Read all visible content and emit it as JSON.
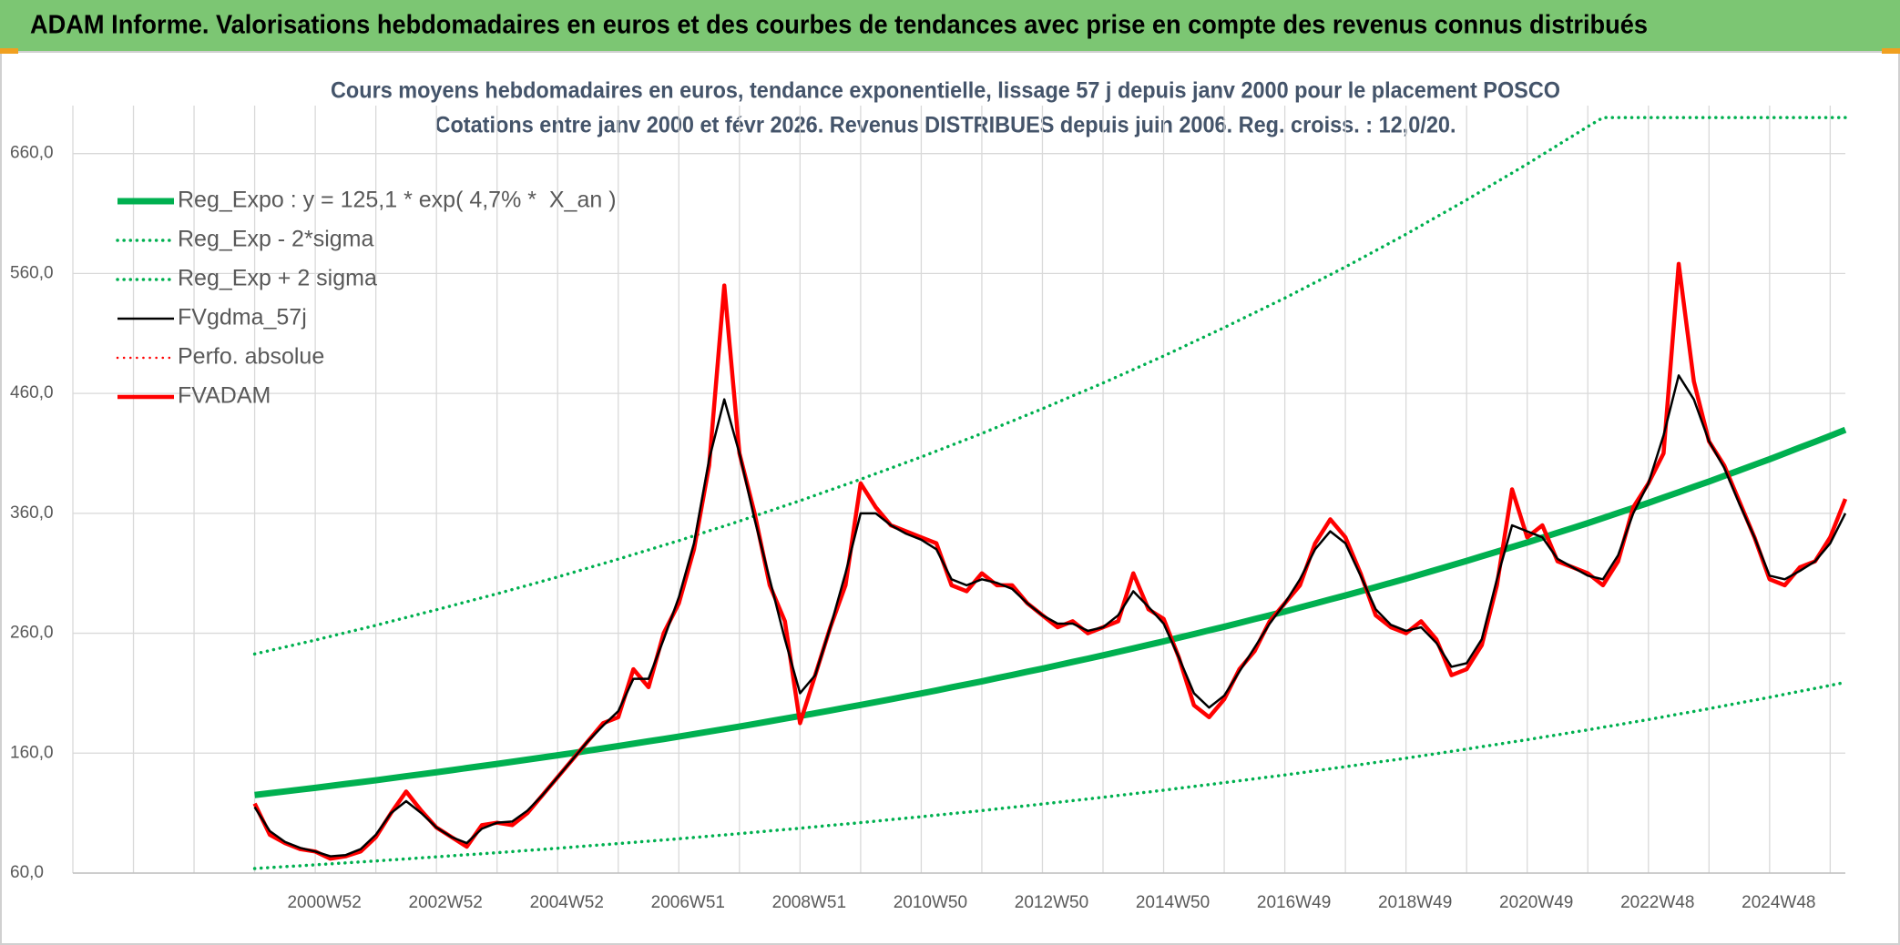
{
  "header": "ADAM Informe. Valorisations hebdomadaires en euros et des courbes de tendances avec prise en compte des revenus connus distribués",
  "chart_data": {
    "type": "line",
    "title": "Cours moyens hebdomadaires en euros, tendance exponentielle, lissage 57 j depuis janv 2000 pour le placement POSCO",
    "subtitle": "Cotations entre janv 2000 et févr 2026. Revenus DISTRIBUES depuis juin 2006. Reg. croiss. : 12,0/20.",
    "categories": [
      null,
      null,
      null,
      null,
      "2000W52",
      null,
      null,
      null,
      null,
      null,
      null,
      null,
      "2002W52",
      null,
      null,
      null,
      null,
      null,
      null,
      null,
      "2004W52",
      null,
      null,
      null,
      null,
      null,
      null,
      null,
      "2006W51",
      null,
      null,
      null,
      null,
      null,
      null,
      null,
      "2008W51",
      null,
      null,
      null,
      null,
      null,
      null,
      null,
      "2010W50",
      null,
      null,
      null,
      null,
      null,
      null,
      null,
      "2012W50",
      null,
      null,
      null,
      null,
      null,
      null,
      null,
      "2014W50",
      null,
      null,
      null,
      null,
      null,
      null,
      null,
      "2016W49",
      null,
      null,
      null,
      null,
      null,
      null,
      null,
      "2018W49",
      null,
      null,
      null,
      null,
      null,
      null,
      null,
      "2020W49",
      null,
      null,
      null,
      null,
      null,
      null,
      null,
      "2022W48",
      null,
      null,
      null,
      null,
      null,
      null,
      null,
      "2024W48",
      null,
      null,
      null,
      null,
      null
    ],
    "ylim": [
      60,
      700
    ],
    "yticks": [
      {
        "value": 60,
        "label": "60,0"
      },
      {
        "value": 160,
        "label": "160,0"
      },
      {
        "value": 260,
        "label": "260,0"
      },
      {
        "value": 360,
        "label": "360,0"
      },
      {
        "value": 460,
        "label": "460,0"
      },
      {
        "value": 560,
        "label": "560,0"
      },
      {
        "value": 660,
        "label": "660,0"
      }
    ],
    "grid": true,
    "legend": "upper left",
    "series": [
      {
        "name": "Reg_Expo : y = 125,1 * exp( 4,7% *  X_an )",
        "color": "#00b050",
        "line_style": "solid",
        "values": [
          125.1,
          126.6,
          128.1,
          129.6,
          131.1,
          132.7,
          134.3,
          135.8,
          137.4,
          139.1,
          140.8,
          142.4,
          144.1,
          145.8,
          147.6,
          149.3,
          151.0,
          152.8,
          154.6,
          156.4,
          158.2,
          160.1,
          162.1,
          164.0,
          165.9,
          167.9,
          169.9,
          171.8,
          173.8,
          175.9,
          178.0,
          180.1,
          182.2,
          184.4,
          186.6,
          188.8,
          191.0,
          193.3,
          195.6,
          197.9,
          200.2,
          202.6,
          205.0,
          207.4,
          209.8,
          212.3,
          214.9,
          217.4,
          219.9,
          222.6,
          225.2,
          227.9,
          230.5,
          233.3,
          236.1,
          238.8,
          241.6,
          244.5,
          247.4,
          250.3,
          253.2,
          256.3,
          259.3,
          262.4,
          265.4,
          268.6,
          271.8,
          274.9,
          278.1,
          281.5,
          284.8,
          288.2,
          291.5,
          295.0,
          298.5,
          302.0,
          305.5,
          309.2,
          312.9,
          316.6,
          320.3,
          324.2,
          328.0,
          331.9,
          335.7,
          339.7,
          343.8,
          347.8,
          351.8,
          356.0,
          360.3,
          364.5,
          368.7,
          373.2,
          377.6,
          382.1,
          386.5,
          391.2,
          395.8,
          400.5,
          405.1,
          410.0,
          414.9,
          419.7,
          424.6,
          429.6
        ]
      },
      {
        "name": "Reg_Exp - 2*sigma",
        "color": "#00b050",
        "line_style": "dotted",
        "values": [
          63.8,
          64.6,
          65.4,
          66.1,
          66.9,
          67.7,
          68.5,
          69.3,
          70.1,
          71.0,
          71.8,
          72.7,
          73.5,
          74.4,
          75.3,
          76.1,
          77.0,
          77.9,
          78.9,
          79.8,
          80.7,
          81.7,
          82.7,
          83.6,
          84.6,
          85.6,
          86.6,
          87.6,
          88.6,
          89.7,
          90.8,
          91.8,
          92.9,
          94.0,
          95.2,
          96.3,
          97.4,
          98.6,
          99.8,
          100.9,
          102.1,
          103.3,
          104.6,
          105.8,
          107.0,
          108.3,
          109.6,
          110.8,
          112.1,
          113.5,
          114.9,
          116.2,
          117.6,
          119.0,
          120.4,
          121.8,
          123.2,
          124.7,
          126.2,
          127.6,
          129.1,
          130.7,
          132.3,
          133.8,
          135.4,
          137.0,
          138.6,
          140.2,
          141.8,
          143.5,
          145.3,
          147.0,
          148.7,
          150.5,
          152.3,
          154.0,
          155.8,
          157.7,
          159.6,
          161.5,
          163.4,
          165.4,
          167.3,
          169.3,
          171.2,
          173.3,
          175.3,
          177.4,
          179.4,
          181.6,
          183.7,
          185.9,
          188.0,
          190.3,
          192.6,
          194.8,
          197.1,
          199.5,
          201.9,
          204.2,
          206.6,
          209.1,
          211.6,
          214.0,
          216.5,
          219.1
        ]
      },
      {
        "name": "Reg_Exp + 2 sigma",
        "color": "#00b050",
        "line_style": "dotted",
        "values": [
          242.7,
          245.6,
          248.5,
          251.4,
          254.3,
          257.4,
          260.5,
          263.5,
          266.6,
          269.9,
          273.1,
          276.4,
          279.6,
          282.9,
          286.3,
          289.6,
          292.9,
          296.4,
          299.9,
          303.4,
          306.9,
          310.6,
          314.4,
          318.1,
          321.8,
          325.7,
          329.5,
          333.4,
          337.2,
          341.3,
          345.4,
          349.4,
          353.5,
          357.8,
          362.0,
          366.3,
          370.5,
          375.0,
          379.5,
          383.9,
          388.4,
          393.1,
          397.7,
          402.4,
          407.0,
          411.9,
          416.8,
          421.7,
          426.6,
          431.8,
          436.9,
          442.1,
          447.2,
          452.6,
          458.0,
          463.3,
          468.7,
          474.3,
          479.9,
          485.6,
          491.2,
          497.1,
          503.1,
          509.0,
          514.9,
          521.1,
          527.2,
          533.4,
          539.5,
          546.0,
          552.5,
          559.0,
          565.5,
          572.3,
          579.1,
          585.9,
          592.7,
          599.9,
          607.1,
          614.2,
          621.4,
          628.9,
          636.4,
          643.8,
          651.3,
          659.1,
          666.9,
          674.7,
          682.5,
          690,
          690,
          690,
          690,
          690,
          690,
          690,
          690,
          690,
          690,
          690,
          690,
          690,
          690,
          690,
          690,
          690
        ]
      },
      {
        "name": "FVgdma_57j",
        "color": "#000000",
        "line_style": "solid",
        "values": [
          115,
          95,
          86,
          81,
          78,
          74,
          75,
          80,
          92,
          110,
          120,
          110,
          98,
          90,
          85,
          97,
          102,
          103,
          112,
          125,
          140,
          155,
          170,
          183,
          195,
          222,
          222,
          255,
          290,
          335,
          405,
          455,
          410,
          355,
          305,
          255,
          210,
          225,
          265,
          310,
          360,
          360,
          350,
          343,
          338,
          330,
          305,
          300,
          305,
          302,
          297,
          285,
          275,
          268,
          268,
          262,
          265,
          275,
          295,
          282,
          268,
          240,
          210,
          198,
          208,
          228,
          248,
          268,
          285,
          305,
          330,
          345,
          335,
          308,
          280,
          267,
          262,
          265,
          252,
          232,
          235,
          255,
          305,
          350,
          345,
          340,
          322,
          315,
          308,
          305,
          325,
          360,
          385,
          425,
          475,
          455,
          420,
          398,
          368,
          340,
          308,
          305,
          312,
          320,
          335,
          360
        ]
      },
      {
        "name": "Perfo. absolue",
        "color": "#ff0000",
        "line_style": "dotted",
        "values": [
          null,
          null,
          null,
          null,
          null,
          null,
          null,
          null,
          null,
          null,
          null,
          null,
          null,
          null,
          null,
          null,
          null,
          null,
          null,
          null,
          null,
          null,
          null,
          null,
          null,
          null,
          null,
          null,
          null,
          null,
          null,
          null,
          null,
          null,
          null,
          null,
          null,
          null,
          null,
          null,
          null,
          null,
          null,
          null,
          null,
          null,
          null,
          null,
          null,
          null,
          null,
          null,
          null,
          null,
          null,
          null,
          null,
          null,
          null,
          null,
          null,
          null,
          null,
          null,
          null,
          null,
          null,
          null,
          null,
          null,
          null,
          null,
          null,
          null,
          null,
          null,
          null,
          null,
          null,
          null,
          null,
          null,
          null,
          null,
          null,
          null,
          null,
          null,
          null,
          null,
          null,
          null,
          null,
          null,
          null,
          null,
          null,
          null,
          null,
          null,
          null,
          null,
          null,
          null,
          null,
          null
        ]
      },
      {
        "name": "FVADAM",
        "color": "#ff0000",
        "line_style": "solid",
        "values": [
          118,
          92,
          85,
          80,
          78,
          72,
          74,
          78,
          90,
          110,
          128,
          112,
          98,
          90,
          82,
          100,
          102,
          100,
          110,
          125,
          140,
          155,
          170,
          185,
          190,
          230,
          215,
          260,
          285,
          330,
          400,
          550,
          410,
          360,
          300,
          270,
          185,
          225,
          265,
          300,
          385,
          365,
          350,
          345,
          340,
          335,
          300,
          295,
          310,
          300,
          300,
          285,
          275,
          265,
          270,
          260,
          265,
          270,
          310,
          280,
          272,
          240,
          200,
          190,
          205,
          230,
          245,
          270,
          285,
          300,
          335,
          355,
          340,
          310,
          275,
          265,
          260,
          270,
          255,
          225,
          230,
          250,
          300,
          380,
          340,
          350,
          320,
          315,
          310,
          300,
          320,
          365,
          385,
          410,
          568,
          470,
          420,
          400,
          370,
          340,
          305,
          300,
          315,
          320,
          340,
          372
        ]
      }
    ]
  }
}
